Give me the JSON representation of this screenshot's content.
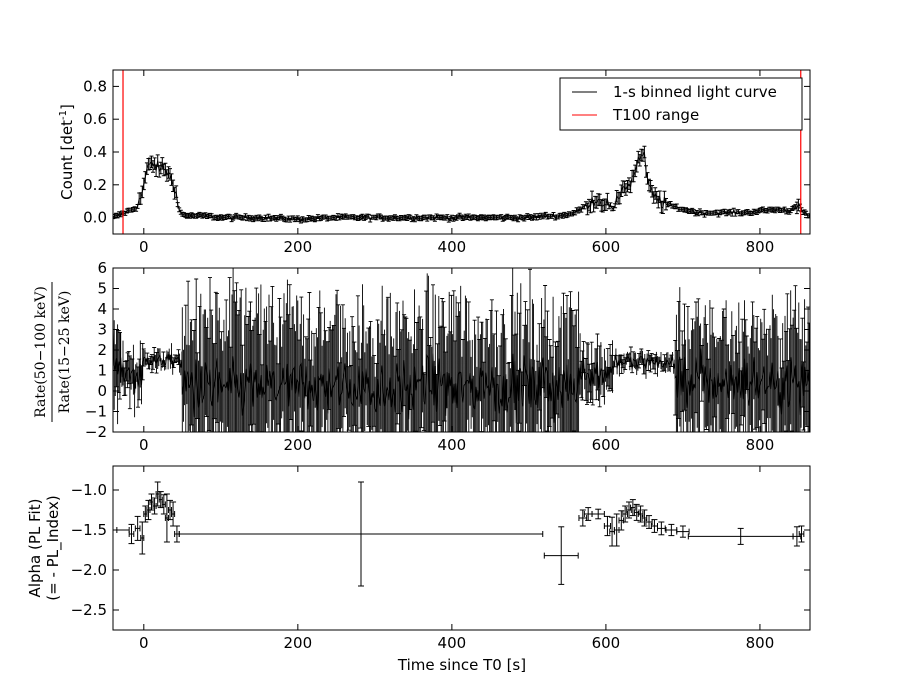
{
  "chart_data": [
    {
      "type": "line",
      "panel": "light-curve",
      "ylabel_main": "Count [det",
      "ylabel_sup": "-1",
      "ylabel_end": "]",
      "xlim": [
        -40,
        865
      ],
      "ylim": [
        -0.1,
        0.9
      ],
      "xticks": [
        0,
        200,
        400,
        600,
        800
      ],
      "yticks": [
        0.0,
        0.2,
        0.4,
        0.6,
        0.8
      ],
      "ytick_labels": [
        "0.0",
        "0.2",
        "0.4",
        "0.6",
        "0.8"
      ],
      "legend": {
        "position": "upper right",
        "entries": [
          {
            "label": "1-s binned light curve",
            "color": "#000000"
          },
          {
            "label": "T100 range",
            "color": "#ff0000"
          }
        ]
      },
      "vlines": {
        "color": "#ff0000",
        "x": [
          -27,
          853
        ]
      },
      "series": [
        {
          "name": "1-s binned light curve",
          "color": "#000000",
          "x": [
            -40,
            -30,
            -20,
            -10,
            -5,
            0,
            5,
            10,
            15,
            20,
            25,
            30,
            35,
            40,
            45,
            50,
            60,
            80,
            100,
            150,
            200,
            250,
            300,
            350,
            400,
            450,
            500,
            520,
            540,
            560,
            570,
            580,
            590,
            600,
            610,
            615,
            620,
            625,
            630,
            635,
            640,
            645,
            650,
            655,
            660,
            670,
            680,
            700,
            720,
            750,
            780,
            800,
            820,
            840,
            850,
            855,
            865
          ],
          "y": [
            0.0,
            0.02,
            0.04,
            0.06,
            0.1,
            0.2,
            0.3,
            0.33,
            0.32,
            0.29,
            0.31,
            0.28,
            0.24,
            0.2,
            0.05,
            0.02,
            0.01,
            0.01,
            0.0,
            0.0,
            -0.01,
            0.0,
            0.0,
            0.0,
            0.0,
            0.0,
            0.0,
            0.01,
            0.01,
            0.03,
            0.06,
            0.1,
            0.11,
            0.09,
            0.05,
            0.09,
            0.18,
            0.2,
            0.19,
            0.25,
            0.32,
            0.38,
            0.36,
            0.2,
            0.14,
            0.1,
            0.08,
            0.05,
            0.03,
            0.03,
            0.03,
            0.04,
            0.05,
            0.04,
            0.1,
            0.03,
            0.01
          ]
        }
      ]
    },
    {
      "type": "scatter",
      "panel": "hardness-ratio",
      "ylabel_num": "Rate(50−100 keV)",
      "ylabel_den": "Rate(15−25 keV)",
      "xlim": [
        -40,
        865
      ],
      "ylim": [
        -2,
        6
      ],
      "xticks": [
        0,
        200,
        400,
        600,
        800
      ],
      "yticks": [
        -2,
        -1,
        0,
        1,
        2,
        3,
        4,
        5,
        6
      ],
      "series": [
        {
          "name": "hardness ratio",
          "color": "#000000",
          "segments": [
            {
              "x0": -40,
              "x1": -30,
              "mean": 0.8,
              "scatter": 1.8,
              "err": 2.5
            },
            {
              "x0": -30,
              "x1": 0,
              "mean": 0.9,
              "scatter": 0.8,
              "err": 1.0
            },
            {
              "x0": 0,
              "x1": 50,
              "mean": 1.5,
              "scatter": 0.3,
              "err": 0.4
            },
            {
              "x0": 50,
              "x1": 565,
              "mean": 0.2,
              "scatter": 1.2,
              "err": 3.5
            },
            {
              "x0": 565,
              "x1": 610,
              "mean": 0.9,
              "scatter": 0.7,
              "err": 1.2
            },
            {
              "x0": 610,
              "x1": 690,
              "mean": 1.4,
              "scatter": 0.3,
              "err": 0.4
            },
            {
              "x0": 690,
              "x1": 865,
              "mean": 0.5,
              "scatter": 1.1,
              "err": 3.0
            }
          ]
        }
      ]
    },
    {
      "type": "scatter",
      "panel": "alpha",
      "ylabel_line1": "Alpha (PL Fit)",
      "ylabel_line2": "(= - PL_Index)",
      "xlabel": "Time since T0 [s]",
      "xlim": [
        -40,
        865
      ],
      "ylim": [
        -2.75,
        -0.7
      ],
      "xticks": [
        0,
        200,
        400,
        600,
        800
      ],
      "yticks": [
        -2.5,
        -2.0,
        -1.5,
        -1.0
      ],
      "ytick_labels": [
        "−2.5",
        "−2.0",
        "−1.5",
        "−1.0"
      ],
      "series": [
        {
          "name": "alpha",
          "color": "#000000",
          "points": [
            {
              "x": -27,
              "y": -1.5,
              "xerr": 8,
              "yerr": 0.0
            },
            {
              "x": -16,
              "y": -1.55,
              "xerr": 3,
              "yerr": 0.12
            },
            {
              "x": -8,
              "y": -1.48,
              "xerr": 3,
              "yerr": 0.15
            },
            {
              "x": -2,
              "y": -1.6,
              "xerr": 2,
              "yerr": 0.2
            },
            {
              "x": 2,
              "y": -1.3,
              "xerr": 2,
              "yerr": 0.1
            },
            {
              "x": 6,
              "y": -1.25,
              "xerr": 2,
              "yerr": 0.12
            },
            {
              "x": 10,
              "y": -1.15,
              "xerr": 2,
              "yerr": 0.1
            },
            {
              "x": 14,
              "y": -1.2,
              "xerr": 2,
              "yerr": 0.1
            },
            {
              "x": 18,
              "y": -1.05,
              "xerr": 2,
              "yerr": 0.15
            },
            {
              "x": 22,
              "y": -1.12,
              "xerr": 2,
              "yerr": 0.1
            },
            {
              "x": 26,
              "y": -1.18,
              "xerr": 2,
              "yerr": 0.12
            },
            {
              "x": 30,
              "y": -1.35,
              "xerr": 2,
              "yerr": 0.3
            },
            {
              "x": 34,
              "y": -1.25,
              "xerr": 2,
              "yerr": 0.12
            },
            {
              "x": 38,
              "y": -1.3,
              "xerr": 2,
              "yerr": 0.15
            },
            {
              "x": 43,
              "y": -1.55,
              "xerr": 3,
              "yerr": 0.1
            },
            {
              "x": 282,
              "y": -1.55,
              "xerr": 236,
              "yerr": 0.65
            },
            {
              "x": 542,
              "y": -1.82,
              "xerr": 22,
              "yerr": 0.36
            },
            {
              "x": 570,
              "y": -1.35,
              "xerr": 5,
              "yerr": 0.1
            },
            {
              "x": 577,
              "y": -1.3,
              "xerr": 5,
              "yerr": 0.08
            },
            {
              "x": 590,
              "y": -1.3,
              "xerr": 8,
              "yerr": 0.06
            },
            {
              "x": 602,
              "y": -1.45,
              "xerr": 4,
              "yerr": 0.12
            },
            {
              "x": 608,
              "y": -1.52,
              "xerr": 3,
              "yerr": 0.18
            },
            {
              "x": 614,
              "y": -1.5,
              "xerr": 3,
              "yerr": 0.2
            },
            {
              "x": 620,
              "y": -1.38,
              "xerr": 3,
              "yerr": 0.12
            },
            {
              "x": 625,
              "y": -1.3,
              "xerr": 3,
              "yerr": 0.1
            },
            {
              "x": 630,
              "y": -1.25,
              "xerr": 3,
              "yerr": 0.1
            },
            {
              "x": 635,
              "y": -1.22,
              "xerr": 3,
              "yerr": 0.1
            },
            {
              "x": 640,
              "y": -1.28,
              "xerr": 3,
              "yerr": 0.1
            },
            {
              "x": 645,
              "y": -1.3,
              "xerr": 3,
              "yerr": 0.1
            },
            {
              "x": 650,
              "y": -1.35,
              "xerr": 3,
              "yerr": 0.1
            },
            {
              "x": 656,
              "y": -1.4,
              "xerr": 4,
              "yerr": 0.08
            },
            {
              "x": 663,
              "y": -1.45,
              "xerr": 4,
              "yerr": 0.08
            },
            {
              "x": 672,
              "y": -1.48,
              "xerr": 5,
              "yerr": 0.08
            },
            {
              "x": 685,
              "y": -1.5,
              "xerr": 7,
              "yerr": 0.07
            },
            {
              "x": 700,
              "y": -1.52,
              "xerr": 8,
              "yerr": 0.07
            },
            {
              "x": 775,
              "y": -1.58,
              "xerr": 68,
              "yerr": 0.1
            },
            {
              "x": 848,
              "y": -1.58,
              "xerr": 5,
              "yerr": 0.12
            },
            {
              "x": 854,
              "y": -1.55,
              "xerr": 3,
              "yerr": 0.1
            }
          ]
        }
      ]
    }
  ]
}
